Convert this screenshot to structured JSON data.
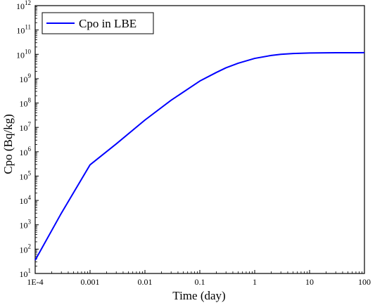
{
  "chart_data": {
    "type": "line",
    "xlabel": "Time (day)",
    "ylabel": "Cpo (Bq/kg)",
    "xscale": "log",
    "yscale": "log",
    "xlim": [
      0.0001,
      100
    ],
    "ylim": [
      10,
      1000000000000
    ],
    "x_tick_labels": [
      "1E-4",
      "0.001",
      "0.01",
      "0.1",
      "1",
      "10",
      "100"
    ],
    "y_tick_exponents": [
      "1",
      "2",
      "3",
      "4",
      "5",
      "6",
      "7",
      "8",
      "9",
      "10",
      "11",
      "12"
    ],
    "y_tick_base": "10",
    "grid": false,
    "legend_position": "top-left",
    "series": [
      {
        "name": "Cpo in LBE",
        "color": "#0000ff",
        "x": [
          0.0001,
          0.0003,
          0.001,
          0.003,
          0.01,
          0.03,
          0.1,
          0.2,
          0.3,
          0.5,
          1,
          2,
          3,
          5,
          10,
          20,
          30,
          50,
          100
        ],
        "y": [
          35,
          3000,
          290000,
          2100000,
          20000000,
          130000000,
          800000000,
          1800000000,
          2800000000,
          4300000000,
          6800000000,
          9000000000,
          10000000000,
          10800000000,
          11300000000,
          11500000000,
          11600000000,
          11600000000,
          11700000000
        ]
      }
    ]
  }
}
